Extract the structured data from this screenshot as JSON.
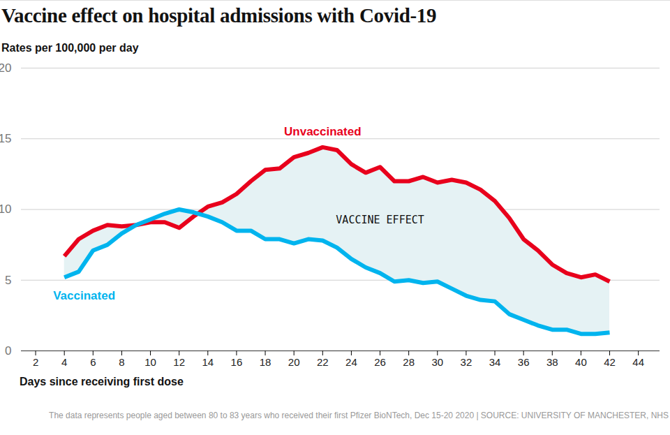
{
  "chart_data": {
    "type": "line",
    "title": "Vaccine effect on hospital admissions with Covid-19",
    "y_label": "Rates per 100,000 per day",
    "x_label": "Days since receiving first dose",
    "caption": "The data represents people aged between 80 to 83 years who received their first Pfizer BioNTech, Dec 15-20 2020 | SOURCE: UNIVERSITY OF MANCHESTER, NHS",
    "annotation": "VACCINE EFFECT",
    "x": [
      4,
      5,
      6,
      7,
      8,
      9,
      10,
      11,
      12,
      13,
      14,
      15,
      16,
      17,
      18,
      19,
      20,
      21,
      22,
      23,
      24,
      25,
      26,
      27,
      28,
      29,
      30,
      31,
      32,
      33,
      34,
      35,
      36,
      37,
      38,
      39,
      40,
      41,
      42
    ],
    "series": [
      {
        "name": "Unvaccinated",
        "color": "#e8001c",
        "values": [
          6.7,
          7.9,
          8.5,
          8.9,
          8.8,
          8.9,
          9.1,
          9.1,
          8.7,
          9.5,
          10.2,
          10.5,
          11.1,
          12.0,
          12.8,
          12.9,
          13.7,
          14.0,
          14.4,
          14.2,
          13.2,
          12.6,
          13.0,
          12.0,
          12.0,
          12.3,
          11.9,
          12.1,
          11.9,
          11.4,
          10.6,
          9.4,
          7.9,
          7.1,
          6.1,
          5.5,
          5.2,
          5.4,
          4.9
        ]
      },
      {
        "name": "Vaccinated",
        "color": "#00b4ee",
        "values": [
          5.2,
          5.6,
          7.1,
          7.5,
          8.3,
          8.9,
          9.3,
          9.7,
          10.0,
          9.8,
          9.5,
          9.1,
          8.5,
          8.5,
          7.9,
          7.9,
          7.6,
          7.9,
          7.8,
          7.3,
          6.5,
          5.9,
          5.5,
          4.9,
          5.0,
          4.8,
          4.9,
          4.4,
          3.9,
          3.6,
          3.5,
          2.6,
          2.2,
          1.8,
          1.5,
          1.5,
          1.2,
          1.2,
          1.3
        ]
      }
    ],
    "xlim": [
      1,
      45.5
    ],
    "xticks": [
      2,
      4,
      6,
      8,
      10,
      12,
      14,
      16,
      18,
      20,
      22,
      24,
      26,
      28,
      30,
      32,
      34,
      36,
      38,
      40,
      42,
      44
    ],
    "ylim": [
      0,
      20
    ],
    "yticks": [
      0,
      5,
      10,
      15,
      20
    ],
    "grid": true
  }
}
